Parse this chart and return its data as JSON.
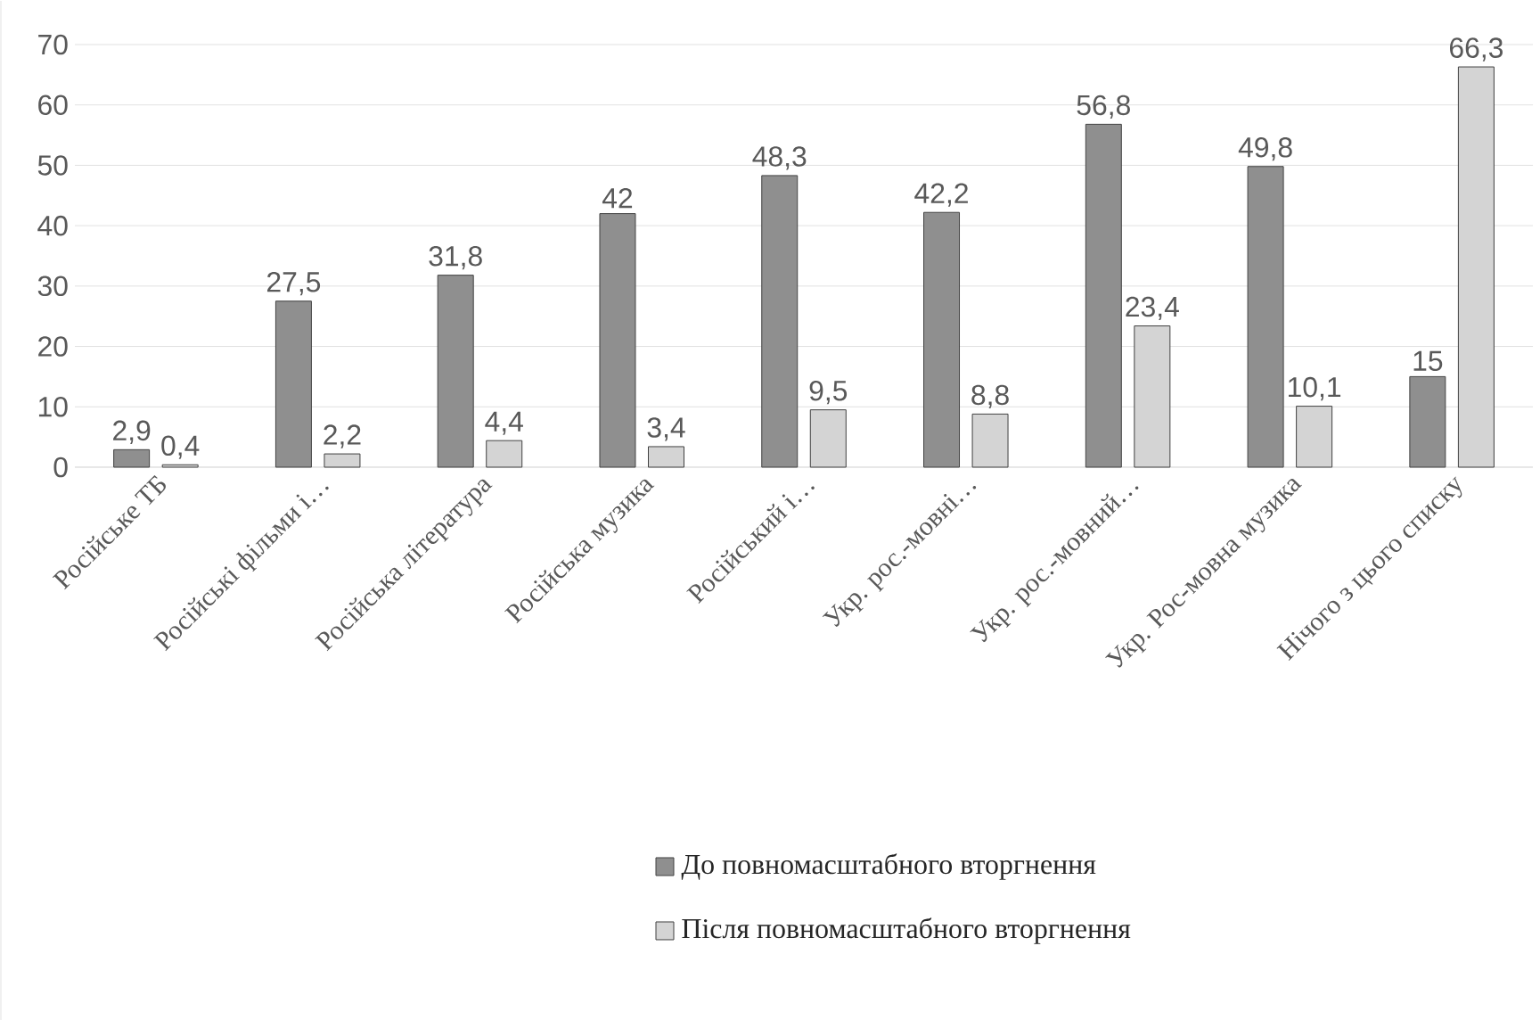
{
  "chart_data": {
    "type": "bar",
    "categories": [
      "Російське ТБ",
      "Російські фільми і…",
      "Російська література",
      "Російська музика",
      "Російський і…",
      "Укр. рос.-мовні…",
      "Укр. рос.-мовний…",
      "Укр. Рос-мовна музика",
      "Нічого з цього списку"
    ],
    "series": [
      {
        "name": "До повномасштабного вторгнення",
        "color": "#8f8f8f",
        "values": [
          2.9,
          27.5,
          31.8,
          42,
          48.3,
          42.2,
          56.8,
          49.8,
          15
        ],
        "value_labels": [
          "2,9",
          "27,5",
          "31,8",
          "42",
          "48,3",
          "42,2",
          "56,8",
          "49,8",
          "15"
        ]
      },
      {
        "name": "Після повномасштабного вторгнення",
        "color": "#d4d4d4",
        "values": [
          0.4,
          2.2,
          4.4,
          3.4,
          9.5,
          8.8,
          23.4,
          10.1,
          66.3
        ],
        "value_labels": [
          "0,4",
          "2,2",
          "4,4",
          "3,4",
          "9,5",
          "8,8",
          "23,4",
          "10,1",
          "66,3"
        ]
      }
    ],
    "ylim": [
      0,
      70
    ],
    "yticks": [
      0,
      10,
      20,
      30,
      40,
      50,
      60,
      70
    ],
    "grid": "y",
    "legend": "bottom"
  }
}
